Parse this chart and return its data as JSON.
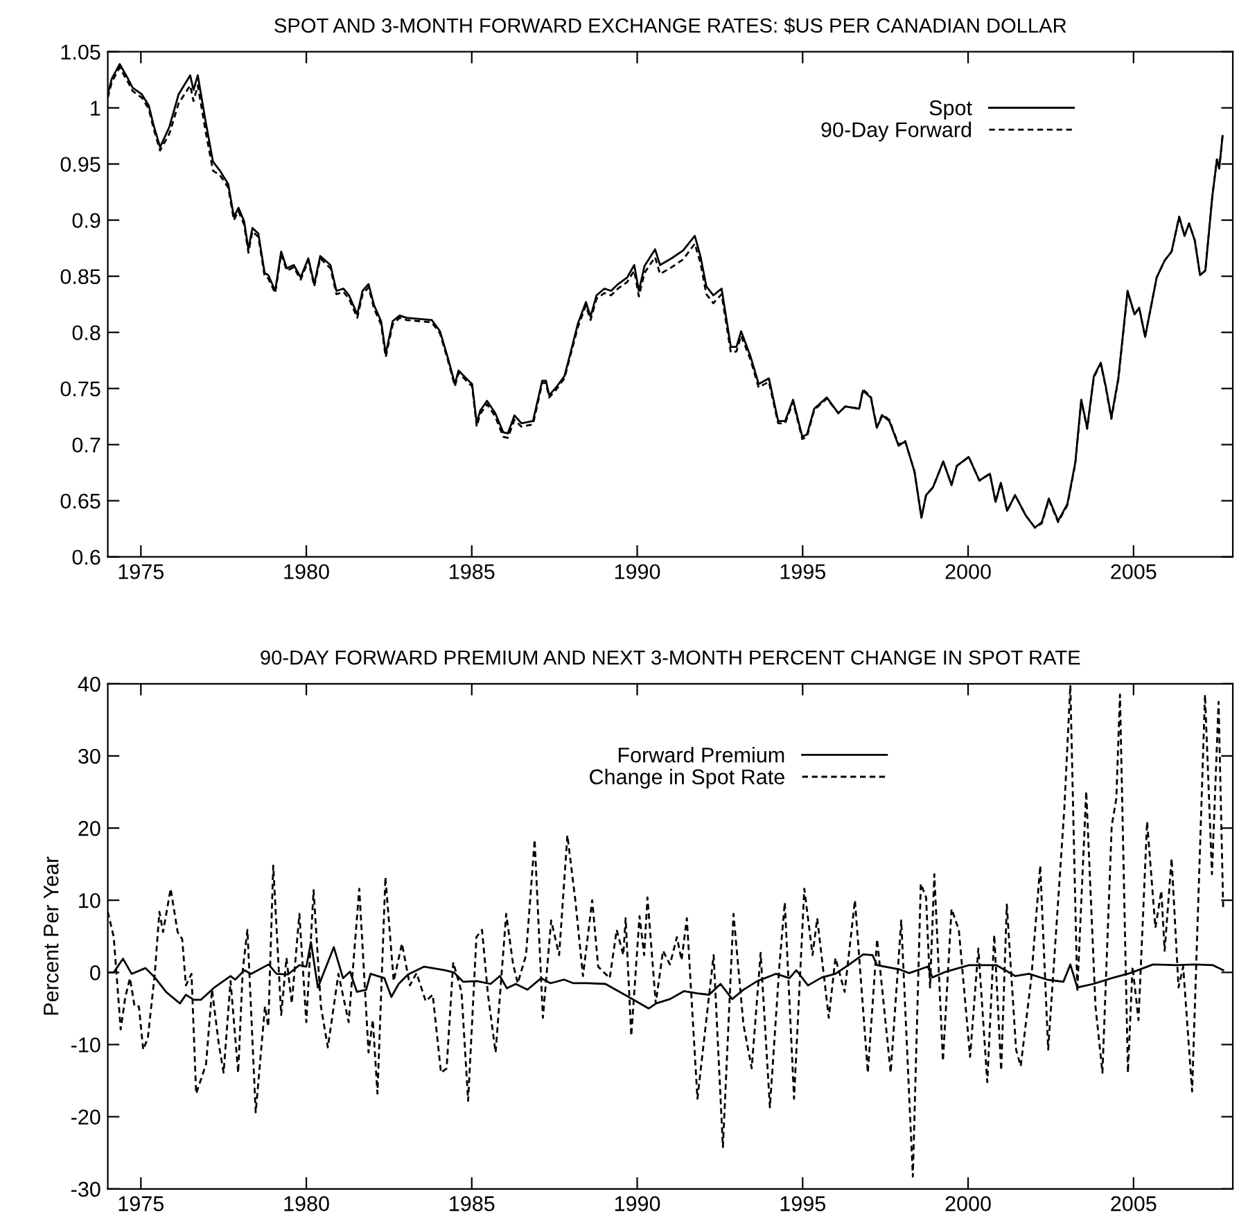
{
  "chart_data": [
    {
      "type": "line",
      "title": "SPOT AND 3-MONTH FORWARD EXCHANGE RATES: $US PER CANADIAN DOLLAR",
      "x": [
        1974.0,
        1974.12,
        1974.36,
        1974.61,
        1974.75,
        1975.03,
        1975.24,
        1975.38,
        1975.58,
        1975.86,
        1976.14,
        1976.49,
        1976.59,
        1976.72,
        1976.95,
        1977.18,
        1977.39,
        1977.64,
        1977.81,
        1977.95,
        1978.12,
        1978.25,
        1978.37,
        1978.55,
        1978.74,
        1978.85,
        1979.06,
        1979.24,
        1979.41,
        1979.62,
        1979.83,
        1980.06,
        1980.24,
        1980.42,
        1980.73,
        1980.91,
        1981.12,
        1981.29,
        1981.54,
        1981.7,
        1981.88,
        1982.05,
        1982.26,
        1982.4,
        1982.61,
        1982.82,
        1983.03,
        1983.37,
        1983.79,
        1984.04,
        1984.28,
        1984.49,
        1984.6,
        1984.9,
        1985.01,
        1985.15,
        1985.25,
        1985.46,
        1985.71,
        1985.95,
        1986.09,
        1986.29,
        1986.5,
        1986.85,
        1987.13,
        1987.24,
        1987.34,
        1987.55,
        1987.8,
        1987.96,
        1988.21,
        1988.45,
        1988.59,
        1988.77,
        1989.01,
        1989.21,
        1989.42,
        1989.7,
        1989.91,
        1990.05,
        1990.22,
        1990.54,
        1990.69,
        1991.04,
        1991.39,
        1991.74,
        1991.91,
        1992.09,
        1992.3,
        1992.55,
        1992.83,
        1993.0,
        1993.14,
        1993.42,
        1993.67,
        1993.98,
        1994.26,
        1994.47,
        1994.71,
        1994.99,
        1995.13,
        1995.35,
        1995.73,
        1996.08,
        1996.29,
        1996.71,
        1996.82,
        1997.06,
        1997.24,
        1997.41,
        1997.62,
        1997.9,
        1998.1,
        1998.38,
        1998.59,
        1998.73,
        1998.94,
        1999.25,
        1999.5,
        1999.66,
        2000.02,
        2000.34,
        2000.66,
        2000.83,
        2000.99,
        2001.18,
        2001.42,
        2001.74,
        2002.02,
        2002.23,
        2002.44,
        2002.72,
        2003.0,
        2003.24,
        2003.42,
        2003.6,
        2003.8,
        2004.01,
        2004.16,
        2004.33,
        2004.54,
        2004.82,
        2005.03,
        2005.17,
        2005.35,
        2005.7,
        2005.94,
        2006.15,
        2006.38,
        2006.54,
        2006.68,
        2006.85,
        2007.01,
        2007.17,
        2007.38,
        2007.52,
        2007.59,
        2007.69
      ],
      "series": [
        {
          "name": "Spot",
          "color": "#000000",
          "line_style": "solid",
          "values": [
            1.012,
            1.026,
            1.039,
            1.026,
            1.018,
            1.012,
            1.002,
            0.985,
            0.965,
            0.983,
            1.012,
            1.029,
            1.016,
            1.029,
            0.989,
            0.952,
            0.944,
            0.932,
            0.903,
            0.911,
            0.899,
            0.874,
            0.893,
            0.888,
            0.853,
            0.851,
            0.837,
            0.872,
            0.857,
            0.86,
            0.849,
            0.866,
            0.843,
            0.868,
            0.86,
            0.837,
            0.839,
            0.833,
            0.816,
            0.837,
            0.843,
            0.824,
            0.81,
            0.781,
            0.81,
            0.815,
            0.813,
            0.812,
            0.811,
            0.801,
            0.777,
            0.754,
            0.766,
            0.757,
            0.754,
            0.719,
            0.73,
            0.739,
            0.728,
            0.711,
            0.71,
            0.726,
            0.719,
            0.721,
            0.757,
            0.757,
            0.744,
            0.751,
            0.761,
            0.779,
            0.808,
            0.827,
            0.814,
            0.833,
            0.839,
            0.837,
            0.843,
            0.849,
            0.86,
            0.837,
            0.859,
            0.874,
            0.86,
            0.866,
            0.873,
            0.886,
            0.868,
            0.841,
            0.833,
            0.839,
            0.787,
            0.787,
            0.801,
            0.779,
            0.754,
            0.759,
            0.721,
            0.721,
            0.74,
            0.707,
            0.709,
            0.732,
            0.742,
            0.728,
            0.734,
            0.732,
            0.748,
            0.742,
            0.715,
            0.726,
            0.721,
            0.699,
            0.703,
            0.676,
            0.635,
            0.655,
            0.662,
            0.685,
            0.664,
            0.681,
            0.689,
            0.668,
            0.674,
            0.649,
            0.666,
            0.641,
            0.655,
            0.637,
            0.626,
            0.631,
            0.652,
            0.632,
            0.647,
            0.684,
            0.74,
            0.715,
            0.761,
            0.773,
            0.752,
            0.724,
            0.759,
            0.837,
            0.816,
            0.822,
            0.796,
            0.849,
            0.864,
            0.872,
            0.903,
            0.886,
            0.897,
            0.882,
            0.851,
            0.855,
            0.921,
            0.954,
            0.946,
            0.975
          ]
        },
        {
          "name": "90-Day Forward",
          "color": "#000000",
          "line_style": "dashed",
          "values": [
            1.009,
            1.023,
            1.036,
            1.023,
            1.015,
            1.009,
            0.999,
            0.982,
            0.962,
            0.977,
            1.004,
            1.02,
            1.006,
            1.02,
            0.98,
            0.944,
            0.94,
            0.929,
            0.9,
            0.908,
            0.896,
            0.871,
            0.89,
            0.885,
            0.85,
            0.848,
            0.835,
            0.87,
            0.855,
            0.858,
            0.847,
            0.864,
            0.841,
            0.866,
            0.857,
            0.834,
            0.836,
            0.83,
            0.813,
            0.834,
            0.84,
            0.821,
            0.807,
            0.778,
            0.807,
            0.813,
            0.811,
            0.81,
            0.809,
            0.799,
            0.775,
            0.752,
            0.764,
            0.755,
            0.752,
            0.716,
            0.727,
            0.736,
            0.725,
            0.707,
            0.706,
            0.722,
            0.716,
            0.718,
            0.755,
            0.755,
            0.742,
            0.749,
            0.759,
            0.777,
            0.805,
            0.824,
            0.811,
            0.83,
            0.835,
            0.833,
            0.839,
            0.845,
            0.855,
            0.832,
            0.853,
            0.867,
            0.852,
            0.858,
            0.865,
            0.879,
            0.862,
            0.834,
            0.826,
            0.834,
            0.782,
            0.783,
            0.797,
            0.776,
            0.751,
            0.756,
            0.719,
            0.719,
            0.738,
            0.705,
            0.707,
            0.731,
            0.741,
            0.728,
            0.734,
            0.732,
            0.749,
            0.743,
            0.716,
            0.727,
            0.722,
            0.7,
            0.703,
            0.676,
            0.635,
            0.655,
            0.662,
            0.685,
            0.664,
            0.681,
            0.689,
            0.668,
            0.674,
            0.649,
            0.666,
            0.641,
            0.655,
            0.637,
            0.626,
            0.63,
            0.651,
            0.631,
            0.646,
            0.683,
            0.739,
            0.714,
            0.76,
            0.772,
            0.751,
            0.723,
            0.758,
            0.836,
            0.816,
            0.822,
            0.796,
            0.849,
            0.864,
            0.872,
            0.903,
            0.886,
            0.897,
            0.882,
            0.851,
            0.855,
            0.921,
            0.954,
            0.946,
            0.975
          ]
        }
      ],
      "xlim": [
        1974,
        2008
      ],
      "xticks": [
        1975,
        1980,
        1985,
        1990,
        1995,
        2000,
        2005
      ],
      "ylim": [
        0.6,
        1.05
      ],
      "yticks": [
        0.6,
        0.65,
        0.7,
        0.75,
        0.8,
        0.85,
        0.9,
        0.95,
        1,
        1.05
      ],
      "legend": "top right",
      "grid": false
    },
    {
      "type": "line",
      "title": "90-DAY FORWARD PREMIUM AND NEXT 3-MONTH PERCENT CHANGE IN SPOT RATE",
      "ylabel": "Percent Per Year",
      "series": [
        {
          "name": "Forward Premium",
          "color": "#000000",
          "line_style": "solid",
          "x": [
            1974.0,
            1974.18,
            1974.46,
            1974.72,
            1975.14,
            1975.42,
            1975.76,
            1976.18,
            1976.36,
            1976.6,
            1976.81,
            1977.22,
            1977.71,
            1977.85,
            1978.13,
            1978.33,
            1978.86,
            1979.1,
            1979.44,
            1979.79,
            1980.0,
            1980.14,
            1980.35,
            1980.83,
            1981.11,
            1981.32,
            1981.53,
            1981.81,
            1981.94,
            1982.36,
            1982.57,
            1982.79,
            1983.07,
            1983.56,
            1984.18,
            1984.46,
            1984.74,
            1985.15,
            1985.57,
            1985.85,
            1986.06,
            1986.33,
            1986.68,
            1987.1,
            1987.38,
            1987.79,
            1988.07,
            1988.49,
            1989.04,
            1989.74,
            1990.35,
            1990.57,
            1990.99,
            1991.41,
            1991.82,
            1992.17,
            1992.52,
            1992.87,
            1993.21,
            1993.63,
            1994.19,
            1994.6,
            1994.81,
            1995.16,
            1995.58,
            1995.99,
            1996.41,
            1996.83,
            1997.11,
            1997.25,
            1997.94,
            1998.22,
            1998.78,
            1998.92,
            1999.33,
            2000.03,
            2000.86,
            2001.42,
            2001.84,
            2002.39,
            2002.88,
            2003.09,
            2003.3,
            2003.78,
            2004.34,
            2004.9,
            2005.59,
            2006.29,
            2006.84,
            2007.4,
            2007.71
          ],
          "values": [
            0.0,
            0.0,
            1.9,
            -0.2,
            0.6,
            -0.7,
            -2.7,
            -4.3,
            -3.1,
            -3.8,
            -3.8,
            -2.1,
            -0.5,
            -1.0,
            0.3,
            -0.2,
            1.1,
            -0.2,
            -0.3,
            1.0,
            0.8,
            4.2,
            -2.1,
            3.5,
            -0.8,
            0.1,
            -2.7,
            -2.4,
            -0.2,
            -0.8,
            -3.4,
            -1.6,
            -0.3,
            0.8,
            0.3,
            0.0,
            -1.3,
            -1.2,
            -1.6,
            -0.5,
            -2.2,
            -1.6,
            -2.4,
            -0.8,
            -1.5,
            -1.0,
            -1.5,
            -1.5,
            -1.6,
            -3.4,
            -5.0,
            -4.3,
            -3.7,
            -2.6,
            -2.9,
            -3.1,
            -1.6,
            -3.7,
            -2.4,
            -1.2,
            -0.2,
            -0.8,
            0.3,
            -1.8,
            -0.7,
            -0.2,
            1.1,
            2.5,
            2.4,
            1.0,
            0.4,
            -0.1,
            0.8,
            -0.7,
            0.1,
            1.0,
            1.0,
            -0.5,
            -0.2,
            -1.0,
            -1.3,
            1.1,
            -2.1,
            -1.6,
            -0.8,
            -0.1,
            1.1,
            1.0,
            1.1,
            1.0,
            0.3
          ]
        },
        {
          "name": "Change in Spot Rate",
          "color": "#000000",
          "line_style": "dashed",
          "x": [
            1974.0,
            1974.18,
            1974.39,
            1974.53,
            1974.67,
            1974.81,
            1974.94,
            1975.07,
            1975.21,
            1975.42,
            1975.56,
            1975.67,
            1975.9,
            1976.11,
            1976.25,
            1976.36,
            1976.53,
            1976.67,
            1976.81,
            1976.97,
            1977.15,
            1977.36,
            1977.5,
            1977.71,
            1977.94,
            1978.08,
            1978.22,
            1978.47,
            1978.75,
            1978.85,
            1979.0,
            1979.24,
            1979.4,
            1979.56,
            1979.79,
            1980.0,
            1980.22,
            1980.44,
            1980.65,
            1980.97,
            1981.28,
            1981.6,
            1981.88,
            1982.01,
            1982.15,
            1982.39,
            1982.64,
            1982.89,
            1983.13,
            1983.33,
            1983.61,
            1983.82,
            1984.07,
            1984.24,
            1984.44,
            1984.69,
            1984.89,
            1985.14,
            1985.31,
            1985.49,
            1985.72,
            1986.04,
            1986.25,
            1986.39,
            1986.64,
            1986.9,
            1987.15,
            1987.4,
            1987.64,
            1987.89,
            1988.13,
            1988.36,
            1988.64,
            1988.82,
            1989.17,
            1989.38,
            1989.58,
            1989.65,
            1989.82,
            1990.07,
            1990.21,
            1990.31,
            1990.56,
            1990.78,
            1990.99,
            1991.2,
            1991.34,
            1991.5,
            1991.82,
            1992.31,
            1992.59,
            1992.91,
            1993.21,
            1993.46,
            1993.73,
            1994.01,
            1994.3,
            1994.46,
            1994.74,
            1995.05,
            1995.3,
            1995.44,
            1995.79,
            1995.99,
            1996.27,
            1996.58,
            1996.97,
            1997.25,
            1997.66,
            1997.98,
            1998.33,
            1998.57,
            1998.73,
            1998.85,
            1998.98,
            1999.24,
            1999.5,
            1999.72,
            2000.06,
            2000.31,
            2000.58,
            2000.79,
            2001.0,
            2001.17,
            2001.45,
            2001.59,
            2001.91,
            2002.18,
            2002.42,
            2002.91,
            2003.09,
            2003.3,
            2003.57,
            2003.85,
            2004.06,
            2004.34,
            2004.48,
            2004.59,
            2004.83,
            2004.97,
            2005.15,
            2005.41,
            2005.66,
            2005.84,
            2005.94,
            2006.15,
            2006.36,
            2006.5,
            2006.77,
            2007.16,
            2007.37,
            2007.57,
            2007.71
          ],
          "values": [
            8.4,
            4.9,
            -7.9,
            -3.4,
            -0.8,
            -4.7,
            -4.7,
            -10.7,
            -9.1,
            -0.2,
            8.4,
            5.6,
            11.6,
            5.6,
            4.6,
            -1.8,
            -0.2,
            -16.8,
            -14.9,
            -12.7,
            -2.4,
            -10.1,
            -13.9,
            -1.2,
            -13.9,
            0.4,
            5.9,
            -19.4,
            -4.7,
            -7.5,
            14.8,
            -5.9,
            2.0,
            -4.3,
            8.1,
            -6.9,
            11.4,
            -4.7,
            -10.4,
            -0.2,
            -6.9,
            11.6,
            -11.1,
            -6.6,
            -16.8,
            13.2,
            -1.2,
            4.0,
            -1.8,
            -0.1,
            -4.0,
            -3.1,
            -13.9,
            -13.3,
            1.4,
            -2.7,
            -17.8,
            4.9,
            5.9,
            -3.1,
            -11.1,
            8.1,
            1.1,
            -1.5,
            2.4,
            18.4,
            -6.3,
            7.2,
            2.4,
            19.0,
            10.0,
            -0.5,
            10.0,
            0.8,
            -0.8,
            5.9,
            2.4,
            7.5,
            -8.8,
            7.8,
            2.4,
            10.4,
            -4.3,
            3.0,
            1.1,
            4.9,
            1.7,
            7.5,
            -17.5,
            2.4,
            -24.2,
            8.1,
            -7.2,
            -13.3,
            2.7,
            -18.7,
            1.1,
            9.7,
            -17.5,
            11.6,
            2.4,
            7.5,
            -6.3,
            2.0,
            -2.7,
            10.0,
            -13.9,
            4.6,
            -13.9,
            7.2,
            -28.3,
            12.3,
            10.4,
            -2.1,
            13.6,
            -12.3,
            8.8,
            5.9,
            -11.7,
            3.3,
            -15.2,
            5.2,
            -13.6,
            9.4,
            -10.7,
            -13.0,
            -0.8,
            14.8,
            -10.7,
            22.8,
            39.8,
            -2.7,
            25.1,
            -4.7,
            -13.9,
            20.3,
            24.1,
            38.5,
            -13.9,
            0.8,
            -6.6,
            20.9,
            6.2,
            11.3,
            3.0,
            15.8,
            -2.1,
            0.8,
            -16.5,
            38.5,
            13.6,
            37.5,
            8.8
          ]
        }
      ],
      "xlim": [
        1974,
        2008
      ],
      "xticks": [
        1975,
        1980,
        1985,
        1990,
        1995,
        2000,
        2005
      ],
      "ylim": [
        -30,
        40
      ],
      "yticks": [
        -30,
        -20,
        -10,
        0,
        10,
        20,
        30,
        40
      ],
      "legend": "top",
      "grid": false
    }
  ]
}
